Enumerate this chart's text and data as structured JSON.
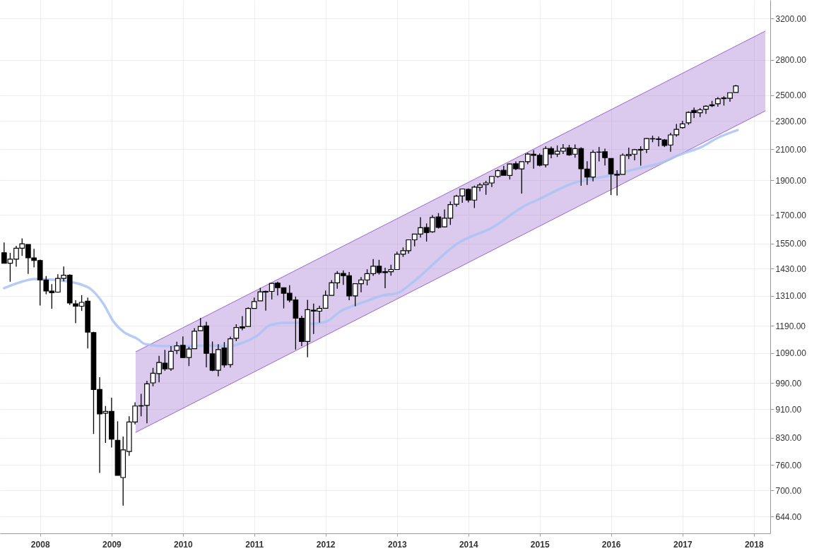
{
  "chart_data": {
    "type": "candlestick",
    "x": [
      "2007-07",
      "2007-08",
      "2007-09",
      "2007-10",
      "2007-11",
      "2007-12",
      "2008-01",
      "2008-02",
      "2008-03",
      "2008-04",
      "2008-05",
      "2008-06",
      "2008-07",
      "2008-08",
      "2008-09",
      "2008-10",
      "2008-11",
      "2008-12",
      "2009-01",
      "2009-02",
      "2009-03",
      "2009-04",
      "2009-05",
      "2009-06",
      "2009-07",
      "2009-08",
      "2009-09",
      "2009-10",
      "2009-11",
      "2009-12",
      "2010-01",
      "2010-02",
      "2010-03",
      "2010-04",
      "2010-05",
      "2010-06",
      "2010-07",
      "2010-08",
      "2010-09",
      "2010-10",
      "2010-11",
      "2010-12",
      "2011-01",
      "2011-02",
      "2011-03",
      "2011-04",
      "2011-05",
      "2011-06",
      "2011-07",
      "2011-08",
      "2011-09",
      "2011-10",
      "2011-11",
      "2011-12",
      "2012-01",
      "2012-02",
      "2012-03",
      "2012-04",
      "2012-05",
      "2012-06",
      "2012-07",
      "2012-08",
      "2012-09",
      "2012-10",
      "2012-11",
      "2012-12",
      "2013-01",
      "2013-02",
      "2013-03",
      "2013-04",
      "2013-05",
      "2013-06",
      "2013-07",
      "2013-08",
      "2013-09",
      "2013-10",
      "2013-11",
      "2013-12",
      "2014-01",
      "2014-02",
      "2014-03",
      "2014-04",
      "2014-05",
      "2014-06",
      "2014-07",
      "2014-08",
      "2014-09",
      "2014-10",
      "2014-11",
      "2014-12",
      "2015-01",
      "2015-02",
      "2015-03",
      "2015-04",
      "2015-05",
      "2015-06",
      "2015-07",
      "2015-08",
      "2015-09",
      "2015-10",
      "2015-11",
      "2015-12",
      "2016-01",
      "2016-02",
      "2016-03",
      "2016-04",
      "2016-05",
      "2016-06",
      "2016-07",
      "2016-08",
      "2016-09",
      "2016-10",
      "2016-11",
      "2016-12",
      "2017-01",
      "2017-02",
      "2017-03",
      "2017-04",
      "2017-05",
      "2017-06",
      "2017-07",
      "2017-08",
      "2017-09",
      "2017-10"
    ],
    "ohlc": [
      [
        1505,
        1556,
        1454,
        1455
      ],
      [
        1455,
        1504,
        1371,
        1474
      ],
      [
        1474,
        1539,
        1439,
        1527
      ],
      [
        1527,
        1576,
        1490,
        1549
      ],
      [
        1546,
        1546,
        1406,
        1481
      ],
      [
        1480,
        1524,
        1436,
        1468
      ],
      [
        1468,
        1472,
        1270,
        1379
      ],
      [
        1379,
        1396,
        1317,
        1331
      ],
      [
        1330,
        1360,
        1257,
        1323
      ],
      [
        1326,
        1404,
        1324,
        1386
      ],
      [
        1386,
        1440,
        1373,
        1400
      ],
      [
        1400,
        1404,
        1272,
        1280
      ],
      [
        1277,
        1292,
        1200,
        1267
      ],
      [
        1267,
        1313,
        1248,
        1283
      ],
      [
        1288,
        1303,
        1106,
        1166
      ],
      [
        1164,
        1167,
        840,
        969
      ],
      [
        969,
        1008,
        741,
        896
      ],
      [
        898,
        919,
        816,
        903
      ],
      [
        903,
        944,
        804,
        826
      ],
      [
        823,
        875,
        735,
        735
      ],
      [
        730,
        833,
        667,
        798
      ],
      [
        794,
        889,
        783,
        873
      ],
      [
        873,
        930,
        866,
        919
      ],
      [
        920,
        956,
        889,
        919
      ],
      [
        921,
        997,
        869,
        987
      ],
      [
        990,
        1039,
        979,
        1021
      ],
      [
        1020,
        1080,
        992,
        1057
      ],
      [
        1055,
        1101,
        1029,
        1036
      ],
      [
        1036,
        1114,
        1029,
        1096
      ],
      [
        1099,
        1130,
        1086,
        1115
      ],
      [
        1117,
        1150,
        1072,
        1074
      ],
      [
        1074,
        1112,
        1045,
        1104
      ],
      [
        1105,
        1181,
        1105,
        1169
      ],
      [
        1171,
        1220,
        1171,
        1187
      ],
      [
        1189,
        1205,
        1041,
        1089
      ],
      [
        1087,
        1131,
        1028,
        1031
      ],
      [
        1031,
        1121,
        1011,
        1102
      ],
      [
        1108,
        1129,
        1040,
        1049
      ],
      [
        1050,
        1149,
        1040,
        1141
      ],
      [
        1143,
        1196,
        1132,
        1183
      ],
      [
        1186,
        1227,
        1173,
        1181
      ],
      [
        1187,
        1263,
        1187,
        1258
      ],
      [
        1258,
        1303,
        1258,
        1286
      ],
      [
        1289,
        1344,
        1289,
        1327
      ],
      [
        1329,
        1332,
        1249,
        1326
      ],
      [
        1329,
        1365,
        1295,
        1364
      ],
      [
        1365,
        1371,
        1312,
        1345
      ],
      [
        1345,
        1345,
        1258,
        1321
      ],
      [
        1321,
        1356,
        1283,
        1292
      ],
      [
        1293,
        1307,
        1102,
        1219
      ],
      [
        1219,
        1229,
        1114,
        1131
      ],
      [
        1131,
        1293,
        1075,
        1253
      ],
      [
        1251,
        1278,
        1159,
        1247
      ],
      [
        1247,
        1269,
        1202,
        1258
      ],
      [
        1259,
        1333,
        1259,
        1312
      ],
      [
        1312,
        1378,
        1312,
        1366
      ],
      [
        1366,
        1419,
        1340,
        1408
      ],
      [
        1408,
        1422,
        1357,
        1398
      ],
      [
        1398,
        1415,
        1292,
        1310
      ],
      [
        1310,
        1363,
        1267,
        1362
      ],
      [
        1362,
        1392,
        1325,
        1379
      ],
      [
        1379,
        1427,
        1355,
        1407
      ],
      [
        1407,
        1475,
        1397,
        1441
      ],
      [
        1441,
        1471,
        1403,
        1412
      ],
      [
        1412,
        1434,
        1343,
        1416
      ],
      [
        1416,
        1448,
        1398,
        1426
      ],
      [
        1426,
        1510,
        1426,
        1498
      ],
      [
        1498,
        1531,
        1485,
        1515
      ],
      [
        1515,
        1570,
        1501,
        1569
      ],
      [
        1569,
        1598,
        1536,
        1598
      ],
      [
        1598,
        1687,
        1581,
        1631
      ],
      [
        1632,
        1654,
        1560,
        1606
      ],
      [
        1610,
        1699,
        1605,
        1686
      ],
      [
        1689,
        1710,
        1627,
        1633
      ],
      [
        1636,
        1730,
        1633,
        1682
      ],
      [
        1682,
        1775,
        1646,
        1757
      ],
      [
        1759,
        1814,
        1746,
        1806
      ],
      [
        1807,
        1849,
        1768,
        1848
      ],
      [
        1846,
        1851,
        1770,
        1783
      ],
      [
        1783,
        1868,
        1738,
        1859
      ],
      [
        1858,
        1884,
        1834,
        1872
      ],
      [
        1874,
        1897,
        1814,
        1884
      ],
      [
        1884,
        1924,
        1860,
        1924
      ],
      [
        1924,
        1968,
        1916,
        1960
      ],
      [
        1962,
        1991,
        1931,
        1931
      ],
      [
        1930,
        2005,
        1905,
        2003
      ],
      [
        2004,
        2019,
        1964,
        1972
      ],
      [
        1971,
        2018,
        1821,
        2018
      ],
      [
        2018,
        2076,
        2001,
        2068
      ],
      [
        2066,
        2094,
        1973,
        2059
      ],
      [
        2059,
        2072,
        1988,
        1995
      ],
      [
        1997,
        2120,
        1981,
        2105
      ],
      [
        2105,
        2118,
        2040,
        2068
      ],
      [
        2068,
        2126,
        2048,
        2086
      ],
      [
        2087,
        2135,
        2068,
        2107
      ],
      [
        2109,
        2130,
        2056,
        2063
      ],
      [
        2067,
        2133,
        2044,
        2104
      ],
      [
        2104,
        2113,
        1867,
        1972
      ],
      [
        1970,
        2021,
        1872,
        1920
      ],
      [
        1920,
        2094,
        1894,
        2079
      ],
      [
        2081,
        2116,
        2019,
        2080
      ],
      [
        2083,
        2104,
        1993,
        2044
      ],
      [
        2038,
        2038,
        1812,
        1940
      ],
      [
        1937,
        1963,
        1810,
        1932
      ],
      [
        1937,
        2072,
        1937,
        2060
      ],
      [
        2057,
        2111,
        2034,
        2065
      ],
      [
        2067,
        2103,
        2026,
        2097
      ],
      [
        2094,
        2121,
        1992,
        2099
      ],
      [
        2099,
        2177,
        2074,
        2174
      ],
      [
        2173,
        2194,
        2148,
        2171
      ],
      [
        2171,
        2188,
        2119,
        2168
      ],
      [
        2164,
        2170,
        2115,
        2126
      ],
      [
        2129,
        2214,
        2084,
        2199
      ],
      [
        2200,
        2278,
        2187,
        2239
      ],
      [
        2252,
        2301,
        2245,
        2279
      ],
      [
        2286,
        2372,
        2272,
        2364
      ],
      [
        2380,
        2401,
        2322,
        2363
      ],
      [
        2362,
        2398,
        2329,
        2384
      ],
      [
        2389,
        2419,
        2353,
        2412
      ],
      [
        2416,
        2454,
        2406,
        2423
      ],
      [
        2431,
        2484,
        2408,
        2470
      ],
      [
        2477,
        2491,
        2417,
        2472
      ],
      [
        2474,
        2519,
        2447,
        2519
      ],
      [
        2521,
        2583,
        2520,
        2575
      ]
    ],
    "series": [
      {
        "type": "area",
        "color": "#9966cc",
        "x": [
          "2009-05-04",
          "2018-03-01"
        ],
        "values": [
          1094,
          3072
        ]
      },
      {
        "type": "line",
        "color": "#9966cc",
        "x": [
          "2009-05-04",
          "2018-03-01"
        ],
        "values": [
          844,
          2376
        ]
      },
      {
        "type": "line",
        "color": "#a9c3f3",
        "x": [
          "2007-07-01",
          "2007-09-15",
          "2007-12-03",
          "2008-03-10",
          "2008-05-20",
          "2008-08-01",
          "2008-09-10",
          "2008-11-20",
          "2009-01-11",
          "2009-03-05",
          "2009-04-10",
          "2009-05-15",
          "2009-06-20",
          "2009-10-05",
          "2010-01-20",
          "2010-05-05",
          "2010-08-20",
          "2010-11-05",
          "2011-01-15",
          "2011-03-25",
          "2011-06-05",
          "2011-08-15",
          "2011-10-25",
          "2012-01-05",
          "2012-03-20",
          "2012-05-30",
          "2012-08-10",
          "2012-10-20",
          "2013-01-01",
          "2013-03-20",
          "2013-11-15",
          "2014-05-05",
          "2014-10-25",
          "2014-12-05",
          "2015-06-25",
          "2016-01-05",
          "2016-05-25",
          "2016-09-20",
          "2016-12-10",
          "2017-04-15",
          "2017-07-01",
          "2017-10-10"
        ],
        "values": [
          1343,
          1367,
          1383,
          1380,
          1373,
          1358,
          1343,
          1277,
          1206,
          1166,
          1152,
          1140,
          1122,
          1114,
          1114,
          1117,
          1114,
          1127,
          1152,
          1193,
          1201,
          1201,
          1198,
          1206,
          1248,
          1271,
          1292,
          1312,
          1321,
          1367,
          1556,
          1633,
          1756,
          1776,
          1884,
          1932,
          1976,
          2012,
          2059,
          2120,
          2179,
          2234
        ]
      }
    ],
    "xlim": [
      "2007-06-28",
      "2018-03-08"
    ],
    "xticks": [
      "2008",
      "2009",
      "2010",
      "2011",
      "2012",
      "2013",
      "2014",
      "2015",
      "2016",
      "2017",
      "2018"
    ],
    "ylim": [
      610,
      3395
    ],
    "log": true,
    "yticks": [
      {
        "value": 644,
        "label": "644.00"
      },
      {
        "value": 700,
        "label": "700.00"
      },
      {
        "value": 760,
        "label": "760.00"
      },
      {
        "value": 830,
        "label": "830.00"
      },
      {
        "value": 910,
        "label": "910.00"
      },
      {
        "value": 990,
        "label": "990.00"
      },
      {
        "value": 1090,
        "label": "1090.00"
      },
      {
        "value": 1190,
        "label": "1190.00"
      },
      {
        "value": 1310,
        "label": "1310.00"
      },
      {
        "value": 1430,
        "label": "1430.00"
      },
      {
        "value": 1550,
        "label": "1550.00"
      },
      {
        "value": 1700,
        "label": "1700.00"
      },
      {
        "value": 1900,
        "label": "1900.00"
      },
      {
        "value": 2100,
        "label": "2100.00"
      },
      {
        "value": 2300,
        "label": "2300.00"
      },
      {
        "value": 2500,
        "label": "2500.00"
      },
      {
        "value": 2800,
        "label": "2800.00"
      },
      {
        "value": 3200,
        "label": "3200.00"
      }
    ],
    "grid": true
  }
}
